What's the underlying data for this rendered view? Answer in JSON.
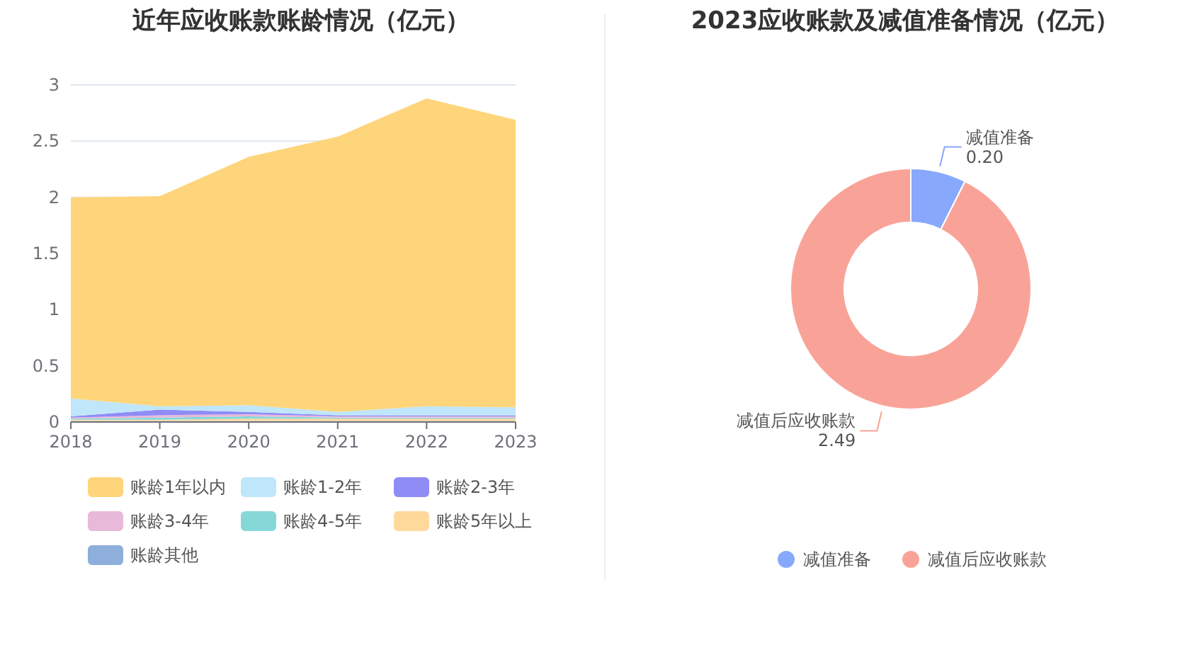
{
  "chart_data": [
    {
      "type": "area",
      "title": "近年应收账款账龄情况（亿元）",
      "categories": [
        "2018",
        "2019",
        "2020",
        "2021",
        "2022",
        "2023"
      ],
      "stacked": true,
      "ylim": [
        0,
        3
      ],
      "yticks": [
        0,
        0.5,
        1,
        1.5,
        2,
        2.5,
        3
      ],
      "grid": "y",
      "legend": "bottom",
      "series": [
        {
          "name": "账龄其他",
          "color": "#8eaedc",
          "values": [
            0.01,
            0.01,
            0.01,
            0.01,
            0.01,
            0.01
          ]
        },
        {
          "name": "账龄5年以上",
          "color": "#ffd99c",
          "values": [
            0.01,
            0.01,
            0.02,
            0.02,
            0.02,
            0.02
          ]
        },
        {
          "name": "账龄4-5年",
          "color": "#86d8d8",
          "values": [
            0.01,
            0.02,
            0.02,
            0.01,
            0.01,
            0.01
          ]
        },
        {
          "name": "账龄3-4年",
          "color": "#e8b9d9",
          "values": [
            0.01,
            0.02,
            0.02,
            0.01,
            0.01,
            0.01
          ]
        },
        {
          "name": "账龄2-3年",
          "color": "#8f8cf5",
          "values": [
            0.01,
            0.05,
            0.02,
            0.01,
            0.01,
            0.01
          ]
        },
        {
          "name": "账龄1-2年",
          "color": "#bfe6fa",
          "values": [
            0.16,
            0.03,
            0.06,
            0.03,
            0.08,
            0.07
          ]
        },
        {
          "name": "账龄1年以内",
          "color": "#fed57a",
          "values": [
            1.79,
            1.87,
            2.21,
            2.45,
            2.74,
            2.56
          ]
        }
      ]
    },
    {
      "type": "donut",
      "title": "2023应收账款及减值准备情况（亿元）",
      "categories": [
        "减值准备",
        "减值后应收账款"
      ],
      "values": [
        0.2,
        2.49
      ],
      "value_labels": [
        "0.20",
        "2.49"
      ],
      "colors": [
        "#87a8fb",
        "#f9a398"
      ],
      "legend": "bottom"
    }
  ]
}
